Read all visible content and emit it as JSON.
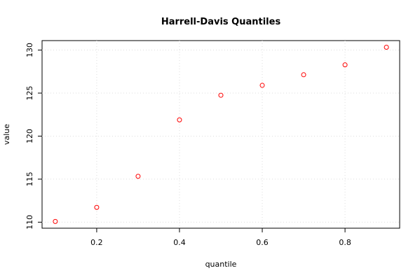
{
  "chart_data": {
    "type": "scatter",
    "title": "Harrell-Davis Quantiles",
    "x_label": "quantile",
    "y_label": "value",
    "x": [
      0.1,
      0.2,
      0.3,
      0.4,
      0.5,
      0.6,
      0.7,
      0.8,
      0.9
    ],
    "series": [
      {
        "name": "value",
        "color": "#ff0000",
        "values": [
          110.08,
          111.72,
          115.33,
          121.89,
          124.75,
          125.9,
          127.13,
          128.28,
          130.33
        ]
      }
    ],
    "xlim": [
      0.068,
      0.932
    ],
    "ylim": [
      109.3,
      131.1
    ],
    "xticks": [
      0.2,
      0.4,
      0.6,
      0.8
    ],
    "yticks": [
      110,
      115,
      120,
      125,
      130
    ],
    "grid": true
  }
}
